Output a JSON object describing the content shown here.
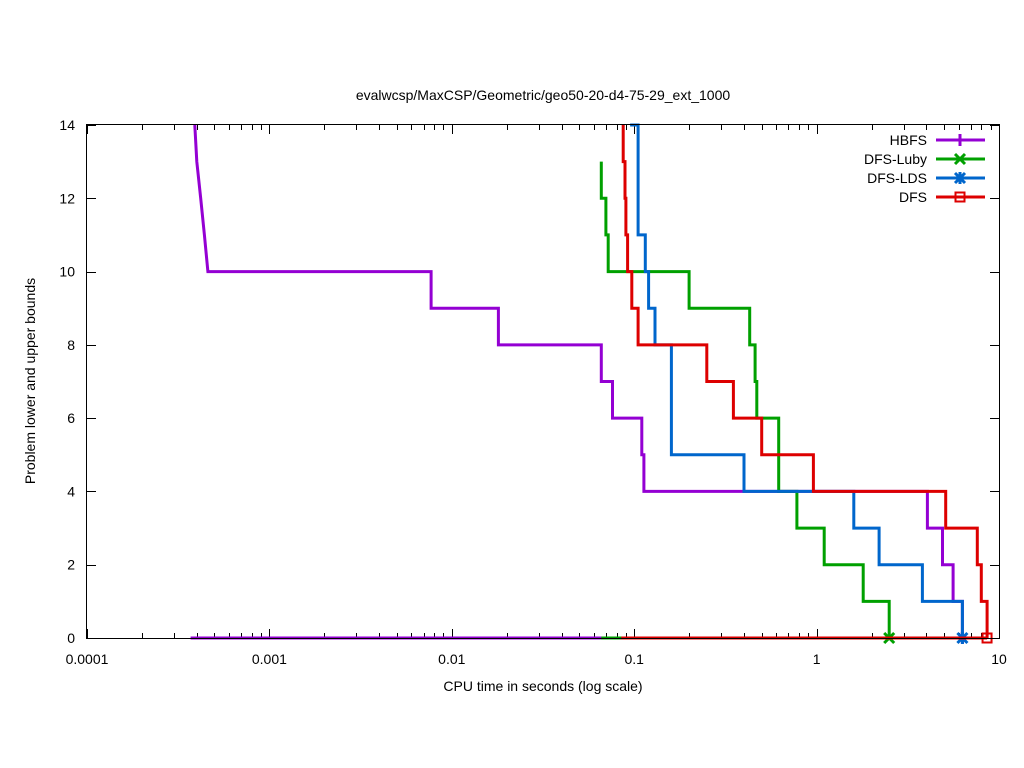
{
  "chart_data": {
    "type": "line",
    "step": true,
    "title": "evalwcsp/MaxCSP/Geometric/geo50-20-d4-75-29_ext_1000",
    "xlabel": "CPU time in seconds (log scale)",
    "ylabel": "Problem lower and upper bounds",
    "xscale": "log",
    "xlim": [
      0.0001,
      10
    ],
    "ylim": [
      0,
      14
    ],
    "x_ticks": [
      {
        "value": 0.0001,
        "label": "0.0001"
      },
      {
        "value": 0.001,
        "label": "0.001"
      },
      {
        "value": 0.01,
        "label": "0.01"
      },
      {
        "value": 0.1,
        "label": "0.1"
      },
      {
        "value": 1,
        "label": "1"
      },
      {
        "value": 10,
        "label": "10"
      }
    ],
    "y_ticks": [
      {
        "value": 0,
        "label": "0"
      },
      {
        "value": 2,
        "label": "2"
      },
      {
        "value": 4,
        "label": "4"
      },
      {
        "value": 6,
        "label": "6"
      },
      {
        "value": 8,
        "label": "8"
      },
      {
        "value": 10,
        "label": "10"
      },
      {
        "value": 12,
        "label": "12"
      },
      {
        "value": 14,
        "label": "14"
      }
    ],
    "legend_position": "top-right",
    "series": [
      {
        "name": "HBFS",
        "color": "#9400d3",
        "marker": "plus",
        "upper": [
          [
            0.00039,
            14
          ],
          [
            0.0004,
            13
          ],
          [
            0.00042,
            12
          ],
          [
            0.00044,
            11
          ],
          [
            0.00046,
            10
          ],
          [
            0.0077,
            10
          ],
          [
            0.0077,
            9
          ],
          [
            0.018,
            9
          ],
          [
            0.018,
            8
          ],
          [
            0.066,
            8
          ],
          [
            0.066,
            7
          ],
          [
            0.076,
            7
          ],
          [
            0.076,
            6
          ],
          [
            0.11,
            6
          ],
          [
            0.11,
            5
          ],
          [
            0.113,
            5
          ],
          [
            0.113,
            4
          ],
          [
            4.05,
            4
          ],
          [
            4.05,
            3
          ],
          [
            4.9,
            3
          ],
          [
            4.9,
            2
          ],
          [
            5.6,
            2
          ],
          [
            5.6,
            1
          ],
          [
            6.3,
            1
          ],
          [
            6.3,
            0
          ]
        ],
        "lower": [
          [
            0.00037,
            0
          ],
          [
            6.3,
            0
          ]
        ],
        "end_marker": [
          6.3,
          0
        ]
      },
      {
        "name": "DFS-Luby",
        "color": "#00a000",
        "marker": "x",
        "upper": [
          [
            0.066,
            13
          ],
          [
            0.066,
            12
          ],
          [
            0.07,
            12
          ],
          [
            0.07,
            11
          ],
          [
            0.072,
            11
          ],
          [
            0.072,
            10
          ],
          [
            0.2,
            10
          ],
          [
            0.2,
            9
          ],
          [
            0.43,
            9
          ],
          [
            0.43,
            8
          ],
          [
            0.46,
            8
          ],
          [
            0.46,
            7
          ],
          [
            0.47,
            7
          ],
          [
            0.47,
            6
          ],
          [
            0.62,
            6
          ],
          [
            0.62,
            4
          ],
          [
            0.78,
            4
          ],
          [
            0.78,
            3
          ],
          [
            1.1,
            3
          ],
          [
            1.1,
            2
          ],
          [
            1.8,
            2
          ],
          [
            1.8,
            1
          ],
          [
            2.5,
            1
          ],
          [
            2.5,
            0
          ]
        ],
        "lower": [
          [
            0.066,
            0
          ],
          [
            2.5,
            0
          ]
        ],
        "end_marker": [
          2.5,
          0
        ]
      },
      {
        "name": "DFS-LDS",
        "color": "#0066cc",
        "marker": "star",
        "upper": [
          [
            0.095,
            14
          ],
          [
            0.105,
            14
          ],
          [
            0.105,
            11
          ],
          [
            0.115,
            11
          ],
          [
            0.115,
            10
          ],
          [
            0.12,
            10
          ],
          [
            0.12,
            9
          ],
          [
            0.13,
            9
          ],
          [
            0.13,
            8
          ],
          [
            0.16,
            8
          ],
          [
            0.16,
            5
          ],
          [
            0.4,
            5
          ],
          [
            0.4,
            4
          ],
          [
            1.6,
            4
          ],
          [
            1.6,
            3
          ],
          [
            2.2,
            3
          ],
          [
            2.2,
            2
          ],
          [
            3.8,
            2
          ],
          [
            3.8,
            1
          ],
          [
            6.3,
            1
          ],
          [
            6.3,
            0
          ]
        ],
        "lower": [
          [
            0.09,
            0
          ],
          [
            6.3,
            0
          ]
        ],
        "end_marker": [
          6.3,
          0
        ]
      },
      {
        "name": "DFS",
        "color": "#dd0000",
        "marker": "square",
        "upper": [
          [
            0.087,
            14
          ],
          [
            0.087,
            13
          ],
          [
            0.089,
            13
          ],
          [
            0.089,
            12
          ],
          [
            0.09,
            12
          ],
          [
            0.09,
            11
          ],
          [
            0.092,
            11
          ],
          [
            0.092,
            10
          ],
          [
            0.097,
            10
          ],
          [
            0.097,
            9
          ],
          [
            0.105,
            9
          ],
          [
            0.105,
            8
          ],
          [
            0.16,
            8
          ],
          [
            0.16,
            8
          ],
          [
            0.25,
            8
          ],
          [
            0.25,
            7
          ],
          [
            0.35,
            7
          ],
          [
            0.35,
            6
          ],
          [
            0.5,
            6
          ],
          [
            0.5,
            5
          ],
          [
            0.96,
            5
          ],
          [
            0.96,
            4
          ],
          [
            5.1,
            4
          ],
          [
            5.1,
            3
          ],
          [
            7.6,
            3
          ],
          [
            7.6,
            2
          ],
          [
            8.0,
            2
          ],
          [
            8.0,
            1
          ],
          [
            8.6,
            1
          ],
          [
            8.6,
            0
          ]
        ],
        "lower": [
          [
            0.085,
            0
          ],
          [
            8.6,
            0
          ]
        ],
        "end_marker": [
          8.6,
          0
        ]
      }
    ]
  }
}
